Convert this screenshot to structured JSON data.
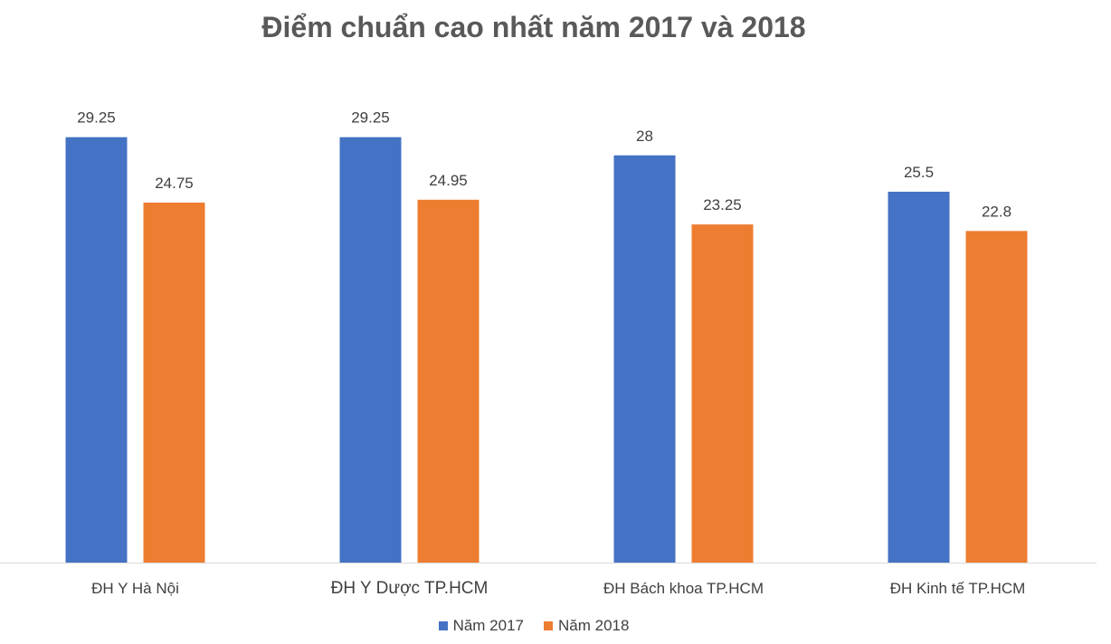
{
  "chart_data": {
    "type": "bar",
    "title": "Điểm chuẩn cao nhất năm 2017 và 2018",
    "categories": [
      "ĐH Y Hà Nội",
      "ĐH Y Dược TP.HCM",
      "ĐH Bách khoa TP.HCM",
      "ĐH Kinh tế TP.HCM"
    ],
    "series": [
      {
        "name": "Năm 2017",
        "color": "#4472C4",
        "values": [
          29.25,
          29.25,
          28,
          25.5
        ]
      },
      {
        "name": "Năm 2018",
        "color": "#ED7D31",
        "values": [
          24.75,
          24.95,
          23.25,
          22.8
        ]
      }
    ],
    "ylim": [
      0,
      32
    ],
    "grid": false,
    "legend": "bottom",
    "xlabel": "",
    "ylabel": ""
  }
}
